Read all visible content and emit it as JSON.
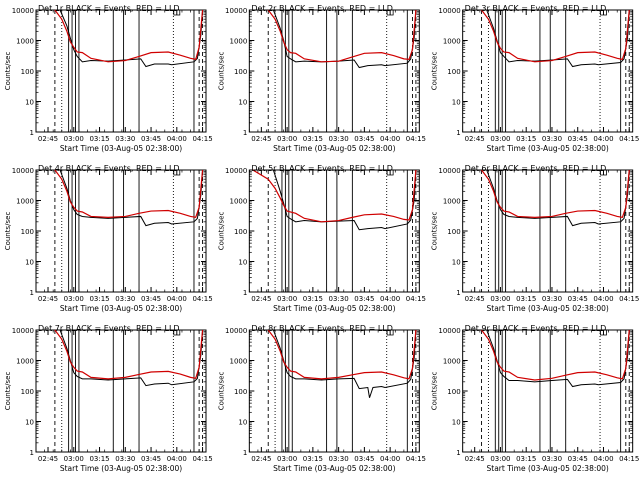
{
  "figure": {
    "panel_titles": [
      "Det 1r BLACK = Events, RED = LLD",
      "Det 2r BLACK = Events, RED = LLD",
      "Det 3r BLACK = Events, RED = LLD",
      "Det 4r BLACK = Events, RED = LLD",
      "Det 5r BLACK = Events, RED = LLD",
      "Det 6r BLACK = Events, RED = LLD",
      "Det 7r BLACK = Events, RED = LLD",
      "Det 8r BLACK = Events, RED = LLD",
      "Det 9r BLACK = Events, RED = LLD"
    ],
    "xlabel": "Start Time (03-Aug-05 02:38:00)",
    "ylabel": "Counts/sec",
    "x_ticks": [
      "02:45",
      "03:00",
      "03:15",
      "03:30",
      "03:45",
      "04:00",
      "04:15"
    ],
    "y_ticks": [
      "1",
      "10",
      "100",
      "1000",
      "10000"
    ],
    "colors": {
      "events": "#000000",
      "lld": "#d00000"
    }
  },
  "chart_data": [
    {
      "type": "line",
      "title": "Det 1r BLACK = Events, RED = LLD",
      "xlabel": "Start Time (03-Aug-05 02:38:00)",
      "ylabel": "Counts/sec",
      "y_scale": "log",
      "ylim": [
        1,
        10000
      ],
      "xlim": [
        "02:38",
        "04:17"
      ],
      "series": [
        {
          "name": "Events",
          "color": "#000000",
          "x": [
            "02:52",
            "02:56",
            "02:58",
            "03:00",
            "03:02",
            "03:05",
            "03:10",
            "03:20",
            "03:30",
            "03:39",
            "03:42",
            "03:47",
            "03:55",
            "03:57",
            "04:10",
            "04:12",
            "04:14",
            "04:15"
          ],
          "values": [
            10000,
            3000,
            1200,
            500,
            300,
            200,
            220,
            210,
            230,
            250,
            140,
            170,
            170,
            160,
            200,
            260,
            1500,
            10000
          ]
        },
        {
          "name": "LLD",
          "color": "#d00000",
          "x": [
            "02:49",
            "02:53",
            "02:56",
            "02:58",
            "03:00",
            "03:02",
            "03:05",
            "03:10",
            "03:20",
            "03:30",
            "03:38",
            "03:45",
            "03:55",
            "04:02",
            "04:08",
            "04:11",
            "04:13",
            "04:15"
          ],
          "values": [
            10000,
            5000,
            2000,
            900,
            600,
            420,
            400,
            260,
            200,
            220,
            300,
            400,
            420,
            330,
            260,
            240,
            600,
            10000
          ]
        }
      ]
    },
    {
      "type": "line",
      "title": "Det 2r BLACK = Events, RED = LLD",
      "xlabel": "Start Time (03-Aug-05 02:38:00)",
      "ylabel": "Counts/sec",
      "y_scale": "log",
      "ylim": [
        1,
        10000
      ],
      "xlim": [
        "02:38",
        "04:17"
      ],
      "series": [
        {
          "name": "Events",
          "color": "#000000",
          "x": [
            "02:52",
            "02:56",
            "02:58",
            "03:00",
            "03:02",
            "03:05",
            "03:10",
            "03:20",
            "03:30",
            "03:39",
            "03:42",
            "03:47",
            "03:55",
            "03:57",
            "04:10",
            "04:12",
            "04:14",
            "04:15"
          ],
          "values": [
            10000,
            2500,
            1000,
            300,
            250,
            200,
            210,
            200,
            210,
            230,
            130,
            150,
            160,
            150,
            180,
            250,
            1200,
            10000
          ]
        },
        {
          "name": "LLD",
          "color": "#d00000",
          "x": [
            "02:49",
            "02:53",
            "02:56",
            "02:58",
            "03:00",
            "03:02",
            "03:05",
            "03:10",
            "03:20",
            "03:30",
            "03:38",
            "03:45",
            "03:55",
            "04:02",
            "04:08",
            "04:11",
            "04:13",
            "04:15"
          ],
          "values": [
            10000,
            5000,
            2000,
            900,
            500,
            400,
            380,
            250,
            200,
            210,
            290,
            380,
            400,
            320,
            250,
            240,
            500,
            10000
          ]
        }
      ]
    },
    {
      "type": "line",
      "title": "Det 3r BLACK = Events, RED = LLD",
      "xlabel": "Start Time (03-Aug-05 02:38:00)",
      "ylabel": "Counts/sec",
      "y_scale": "log",
      "ylim": [
        1,
        10000
      ],
      "xlim": [
        "02:38",
        "04:17"
      ],
      "series": [
        {
          "name": "Events",
          "color": "#000000",
          "x": [
            "02:52",
            "02:56",
            "02:58",
            "03:00",
            "03:02",
            "03:05",
            "03:10",
            "03:20",
            "03:30",
            "03:39",
            "03:42",
            "03:47",
            "03:55",
            "03:57",
            "04:10",
            "04:12",
            "04:14",
            "04:15"
          ],
          "values": [
            10000,
            2500,
            1000,
            400,
            300,
            200,
            220,
            210,
            230,
            250,
            140,
            160,
            170,
            160,
            190,
            250,
            1200,
            10000
          ]
        },
        {
          "name": "LLD",
          "color": "#d00000",
          "x": [
            "02:49",
            "02:53",
            "02:56",
            "02:58",
            "03:00",
            "03:02",
            "03:05",
            "03:10",
            "03:20",
            "03:30",
            "03:38",
            "03:45",
            "03:55",
            "04:02",
            "04:08",
            "04:11",
            "04:13",
            "04:15"
          ],
          "values": [
            10000,
            5000,
            2000,
            900,
            550,
            420,
            400,
            260,
            200,
            220,
            300,
            400,
            420,
            330,
            260,
            240,
            550,
            10000
          ]
        }
      ]
    },
    {
      "type": "line",
      "title": "Det 4r BLACK = Events, RED = LLD",
      "xlabel": "Start Time (03-Aug-05 02:38:00)",
      "ylabel": "Counts/sec",
      "y_scale": "log",
      "ylim": [
        1,
        10000
      ],
      "xlim": [
        "02:38",
        "04:17"
      ],
      "series": [
        {
          "name": "Events",
          "color": "#000000",
          "x": [
            "02:52",
            "02:56",
            "02:58",
            "03:00",
            "03:02",
            "03:05",
            "03:10",
            "03:20",
            "03:30",
            "03:39",
            "03:42",
            "03:47",
            "03:55",
            "03:57",
            "04:10",
            "04:12",
            "04:14",
            "04:15"
          ],
          "values": [
            10000,
            2500,
            1000,
            500,
            350,
            300,
            280,
            260,
            280,
            300,
            150,
            180,
            190,
            170,
            200,
            260,
            1500,
            10000
          ]
        },
        {
          "name": "LLD",
          "color": "#d00000",
          "x": [
            "02:49",
            "02:53",
            "02:56",
            "02:58",
            "03:00",
            "03:02",
            "03:05",
            "03:10",
            "03:20",
            "03:30",
            "03:38",
            "03:45",
            "03:55",
            "04:02",
            "04:08",
            "04:11",
            "04:13",
            "04:15"
          ],
          "values": [
            10000,
            5000,
            2000,
            900,
            600,
            450,
            420,
            300,
            280,
            300,
            380,
            450,
            470,
            380,
            300,
            280,
            600,
            10000
          ]
        }
      ]
    },
    {
      "type": "line",
      "title": "Det 5r BLACK = Events, RED = LLD",
      "xlabel": "Start Time (03-Aug-05 02:38:00)",
      "ylabel": "Counts/sec",
      "y_scale": "log",
      "ylim": [
        1,
        10000
      ],
      "xlim": [
        "02:38",
        "04:17"
      ],
      "series": [
        {
          "name": "Events",
          "color": "#000000",
          "x": [
            "02:52",
            "02:56",
            "02:58",
            "03:00",
            "03:02",
            "03:05",
            "03:10",
            "03:20",
            "03:30",
            "03:39",
            "03:42",
            "03:47",
            "03:55",
            "03:57",
            "04:10",
            "04:12",
            "04:14",
            "04:15"
          ],
          "values": [
            10000,
            2000,
            800,
            300,
            250,
            200,
            220,
            200,
            210,
            220,
            110,
            120,
            130,
            120,
            170,
            230,
            1000,
            10000
          ]
        },
        {
          "name": "LLD",
          "color": "#d00000",
          "x": [
            "02:40",
            "02:49",
            "02:53",
            "02:56",
            "02:58",
            "03:00",
            "03:05",
            "03:10",
            "03:20",
            "03:30",
            "03:38",
            "03:45",
            "03:55",
            "04:02",
            "04:08",
            "04:11",
            "04:13",
            "04:15"
          ],
          "values": [
            10000,
            5000,
            2500,
            1200,
            700,
            450,
            380,
            260,
            200,
            220,
            280,
            340,
            360,
            300,
            240,
            230,
            500,
            10000
          ]
        }
      ]
    },
    {
      "type": "line",
      "title": "Det 6r BLACK = Events, RED = LLD",
      "xlabel": "Start Time (03-Aug-05 02:38:00)",
      "ylabel": "Counts/sec",
      "y_scale": "log",
      "ylim": [
        1,
        10000
      ],
      "xlim": [
        "02:38",
        "04:17"
      ],
      "series": [
        {
          "name": "Events",
          "color": "#000000",
          "x": [
            "02:52",
            "02:56",
            "02:58",
            "03:00",
            "03:02",
            "03:05",
            "03:10",
            "03:20",
            "03:30",
            "03:39",
            "03:42",
            "03:47",
            "03:55",
            "03:57",
            "04:10",
            "04:12",
            "04:14",
            "04:15"
          ],
          "values": [
            10000,
            2500,
            1000,
            500,
            350,
            300,
            280,
            260,
            280,
            300,
            150,
            180,
            190,
            170,
            200,
            260,
            1500,
            10000
          ]
        },
        {
          "name": "LLD",
          "color": "#d00000",
          "x": [
            "02:49",
            "02:53",
            "02:56",
            "02:58",
            "03:00",
            "03:02",
            "03:05",
            "03:10",
            "03:20",
            "03:30",
            "03:38",
            "03:45",
            "03:55",
            "04:02",
            "04:08",
            "04:11",
            "04:13",
            "04:15"
          ],
          "values": [
            10000,
            5000,
            2000,
            900,
            600,
            450,
            420,
            300,
            280,
            300,
            380,
            450,
            470,
            380,
            300,
            280,
            600,
            10000
          ]
        }
      ]
    },
    {
      "type": "line",
      "title": "Det 7r BLACK = Events, RED = LLD",
      "xlabel": "Start Time (03-Aug-05 02:38:00)",
      "ylabel": "Counts/sec",
      "y_scale": "log",
      "ylim": [
        1,
        10000
      ],
      "xlim": [
        "02:38",
        "04:17"
      ],
      "series": [
        {
          "name": "Events",
          "color": "#000000",
          "x": [
            "02:52",
            "02:56",
            "02:58",
            "03:00",
            "03:02",
            "03:05",
            "03:10",
            "03:20",
            "03:30",
            "03:39",
            "03:42",
            "03:47",
            "03:55",
            "03:57",
            "04:10",
            "04:12",
            "04:14",
            "04:15"
          ],
          "values": [
            10000,
            2500,
            1000,
            400,
            300,
            250,
            250,
            230,
            250,
            270,
            150,
            170,
            180,
            160,
            200,
            260,
            1500,
            10000
          ]
        },
        {
          "name": "LLD",
          "color": "#d00000",
          "x": [
            "02:49",
            "02:53",
            "02:56",
            "02:58",
            "03:00",
            "03:02",
            "03:05",
            "03:10",
            "03:20",
            "03:30",
            "03:38",
            "03:45",
            "03:55",
            "04:02",
            "04:08",
            "04:11",
            "04:13",
            "04:15"
          ],
          "values": [
            10000,
            5000,
            2000,
            900,
            600,
            450,
            420,
            280,
            250,
            280,
            350,
            420,
            440,
            360,
            280,
            260,
            600,
            10000
          ]
        }
      ]
    },
    {
      "type": "line",
      "title": "Det 8r BLACK = Events, RED = LLD",
      "xlabel": "Start Time (03-Aug-05 02:38:00)",
      "ylabel": "Counts/sec",
      "y_scale": "log",
      "ylim": [
        1,
        10000
      ],
      "xlim": [
        "02:38",
        "04:17"
      ],
      "series": [
        {
          "name": "Events",
          "color": "#000000",
          "x": [
            "02:52",
            "02:56",
            "02:58",
            "03:00",
            "03:02",
            "03:05",
            "03:10",
            "03:20",
            "03:30",
            "03:39",
            "03:42",
            "03:47",
            "03:48",
            "03:50",
            "03:55",
            "03:57",
            "04:10",
            "04:12",
            "04:14",
            "04:15"
          ],
          "values": [
            10000,
            2500,
            1000,
            400,
            300,
            250,
            250,
            230,
            250,
            260,
            120,
            130,
            60,
            130,
            140,
            130,
            180,
            240,
            1200,
            10000
          ]
        },
        {
          "name": "LLD",
          "color": "#d00000",
          "x": [
            "02:49",
            "02:53",
            "02:56",
            "02:58",
            "03:00",
            "03:02",
            "03:05",
            "03:10",
            "03:20",
            "03:30",
            "03:38",
            "03:45",
            "03:55",
            "04:02",
            "04:08",
            "04:11",
            "04:13",
            "04:15"
          ],
          "values": [
            10000,
            5000,
            2000,
            900,
            600,
            450,
            420,
            280,
            250,
            280,
            340,
            400,
            420,
            340,
            270,
            250,
            550,
            10000
          ]
        }
      ]
    },
    {
      "type": "line",
      "title": "Det 9r BLACK = Events, RED = LLD",
      "xlabel": "Start Time (03-Aug-05 02:38:00)",
      "ylabel": "Counts/sec",
      "y_scale": "log",
      "ylim": [
        1,
        10000
      ],
      "xlim": [
        "02:38",
        "04:17"
      ],
      "series": [
        {
          "name": "Events",
          "color": "#000000",
          "x": [
            "02:52",
            "02:56",
            "02:58",
            "03:00",
            "03:02",
            "03:05",
            "03:10",
            "03:20",
            "03:30",
            "03:39",
            "03:42",
            "03:47",
            "03:55",
            "03:57",
            "04:10",
            "04:12",
            "04:14",
            "04:15"
          ],
          "values": [
            10000,
            2500,
            1000,
            400,
            300,
            220,
            220,
            200,
            220,
            240,
            140,
            160,
            170,
            160,
            190,
            250,
            1300,
            10000
          ]
        },
        {
          "name": "LLD",
          "color": "#d00000",
          "x": [
            "02:49",
            "02:53",
            "02:56",
            "02:58",
            "03:00",
            "03:02",
            "03:05",
            "03:10",
            "03:20",
            "03:30",
            "03:38",
            "03:45",
            "03:55",
            "04:02",
            "04:08",
            "04:11",
            "04:13",
            "04:15"
          ],
          "values": [
            10000,
            5000,
            2000,
            900,
            600,
            450,
            420,
            280,
            230,
            260,
            330,
            400,
            420,
            340,
            270,
            250,
            550,
            10000
          ]
        }
      ]
    }
  ]
}
